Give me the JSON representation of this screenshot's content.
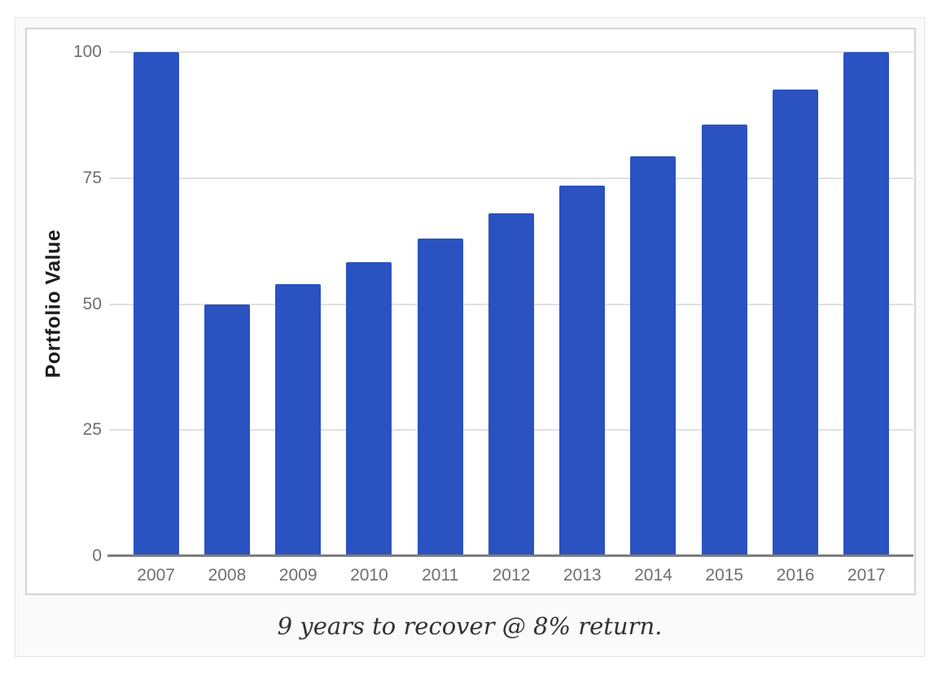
{
  "figure": {
    "background": "#fafafa",
    "border_color": "#e3e3e3"
  },
  "chart_box": {
    "background": "#ffffff",
    "border_color": "#d4d4d4"
  },
  "chart_data": {
    "type": "bar",
    "title": "",
    "xlabel": "",
    "ylabel": "Portfolio Value",
    "categories": [
      "2007",
      "2008",
      "2009",
      "2010",
      "2011",
      "2012",
      "2013",
      "2014",
      "2015",
      "2016",
      "2017"
    ],
    "values": [
      100,
      50,
      54,
      58.32,
      62.99,
      68.02,
      73.47,
      79.34,
      85.69,
      92.55,
      99.95
    ],
    "ylim": [
      0,
      100
    ],
    "yticks": [
      0,
      25,
      50,
      75,
      100
    ],
    "grid": true,
    "legend": "none",
    "caption": "9 years to recover @ 8% return.",
    "colors": {
      "bar": "#2a52c0",
      "gridline": "#e1e1e1",
      "axis_line": "#7d7d7d",
      "tick_labels": "#6f6f6f",
      "y_axis_title": "#1c1c1c",
      "caption_text": "#333333"
    }
  }
}
